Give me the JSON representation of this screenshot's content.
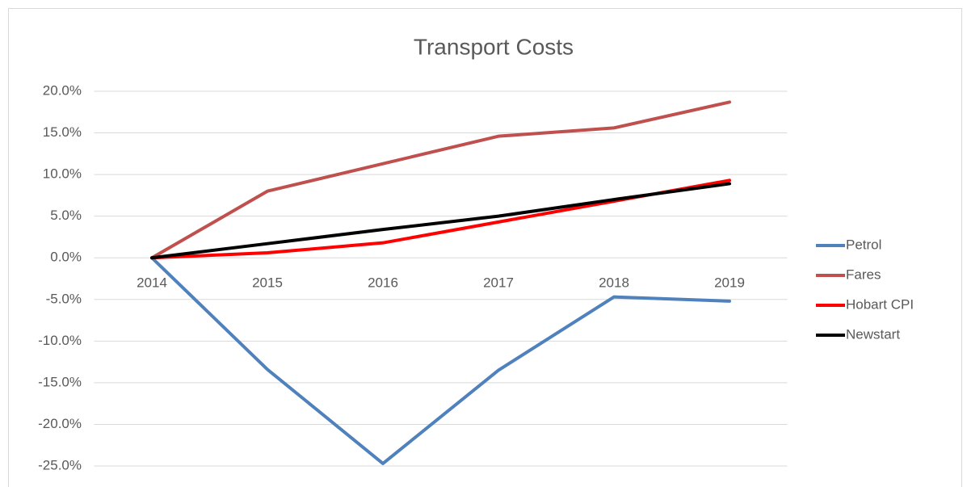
{
  "chart_data": {
    "type": "line",
    "title": "Transport Costs",
    "categories": [
      "2014",
      "2015",
      "2016",
      "2017",
      "2018",
      "2019"
    ],
    "series": [
      {
        "name": "Petrol",
        "color": "#4f81bd",
        "values": [
          0,
          -13.4,
          -24.7,
          -13.5,
          -4.7,
          -5.2
        ]
      },
      {
        "name": "Fares",
        "color": "#c0504d",
        "values": [
          0,
          8.0,
          11.3,
          14.6,
          15.6,
          18.7
        ]
      },
      {
        "name": "Hobart CPI",
        "color": "#ff0000",
        "values": [
          0,
          0.6,
          1.8,
          4.3,
          6.8,
          9.3
        ]
      },
      {
        "name": "Newstart",
        "color": "#000000",
        "values": [
          0,
          1.7,
          3.4,
          5.0,
          7.0,
          8.9
        ]
      }
    ],
    "ylim": [
      -25,
      20
    ],
    "yticks": [
      {
        "value": -25,
        "label": "-25.0%"
      },
      {
        "value": -20,
        "label": "-20.0%"
      },
      {
        "value": -15,
        "label": "-15.0%"
      },
      {
        "value": -10,
        "label": "-10.0%"
      },
      {
        "value": -5,
        "label": "-5.0%"
      },
      {
        "value": 0,
        "label": "0.0%"
      },
      {
        "value": 5,
        "label": "5.0%"
      },
      {
        "value": 10,
        "label": "10.0%"
      },
      {
        "value": 15,
        "label": "15.0%"
      },
      {
        "value": 20,
        "label": "20.0%"
      }
    ],
    "grid": true,
    "legend": "right"
  }
}
